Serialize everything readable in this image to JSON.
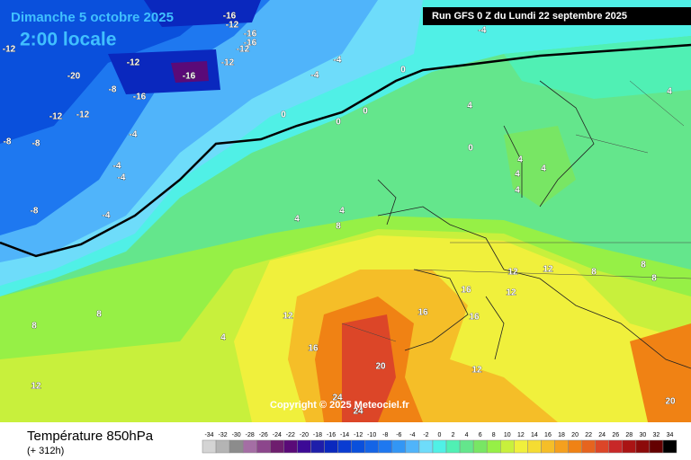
{
  "header": {
    "date": "Dimanche 5 octobre 2025",
    "time": "2:00 locale",
    "run": "Run GFS 0 Z du Lundi 22 septembre 2025",
    "copyright": "Copyright © 2025 Meteociel.fr"
  },
  "footer": {
    "title": "Température 850hPa",
    "lead": "(+ 312h)"
  },
  "scale": {
    "values": [
      -34,
      -32,
      -30,
      -28,
      -26,
      -24,
      -22,
      -20,
      -18,
      -16,
      -14,
      -12,
      -10,
      -8,
      -6,
      -4,
      -2,
      0,
      2,
      4,
      6,
      8,
      10,
      12,
      14,
      16,
      18,
      20,
      22,
      24,
      26,
      28,
      30,
      32,
      34
    ],
    "colors": [
      "#d4d4d4",
      "#b4b4b4",
      "#8c8c8c",
      "#a46ea4",
      "#8c468c",
      "#6e1e6e",
      "#5a0a78",
      "#3c0a96",
      "#1e1eaa",
      "#0a28be",
      "#0a3cd2",
      "#0a50dc",
      "#1464e6",
      "#1e78f0",
      "#3296f5",
      "#50b4fa",
      "#6edcfa",
      "#50f0e6",
      "#50f0b4",
      "#64e68c",
      "#78e664",
      "#96f046",
      "#c8f03c",
      "#f0f03c",
      "#f5dc32",
      "#f5be28",
      "#f5a01e",
      "#f08214",
      "#e6641e",
      "#dc4628",
      "#c82828",
      "#aa1414",
      "#8c0a0a",
      "#640000",
      "#000000"
    ]
  },
  "map": {
    "labels": [
      -16,
      -12,
      -16,
      -16,
      -12,
      -12,
      -16,
      -12,
      -20,
      -4,
      -4,
      -8,
      -12,
      -8,
      -16,
      -12,
      -12,
      -8,
      -4,
      -4,
      -4,
      -8,
      -4,
      0,
      0,
      0,
      0,
      4,
      4,
      4,
      0,
      4,
      4,
      4,
      4,
      8,
      8,
      8,
      8,
      12,
      12,
      12,
      12,
      16,
      16,
      16,
      20,
      24,
      24,
      8,
      8,
      12,
      12,
      4,
      16,
      20,
      -4,
      4
    ]
  }
}
